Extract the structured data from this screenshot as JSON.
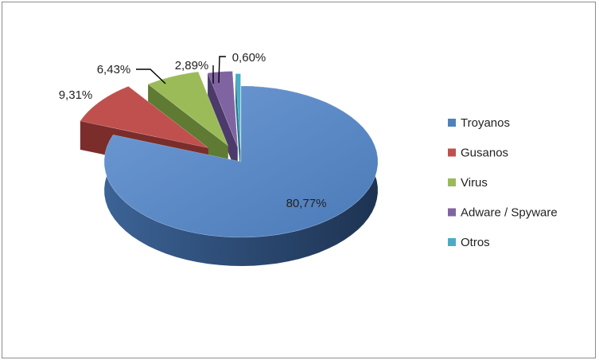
{
  "chart_data": {
    "type": "pie",
    "title": "",
    "categories": [
      "Troyanos",
      "Gusanos",
      "Virus",
      "Adware / Spyware",
      "Otros"
    ],
    "values": [
      80.77,
      9.31,
      6.43,
      2.89,
      0.6
    ],
    "value_labels": [
      "80,77%",
      "9,31%",
      "6,43%",
      "2,89%",
      "0,60%"
    ],
    "colors": [
      "#4f81bd",
      "#c0504d",
      "#9bbb59",
      "#8064a2",
      "#4bacc6"
    ],
    "legend_position": "right",
    "style": "3d-exploded"
  }
}
